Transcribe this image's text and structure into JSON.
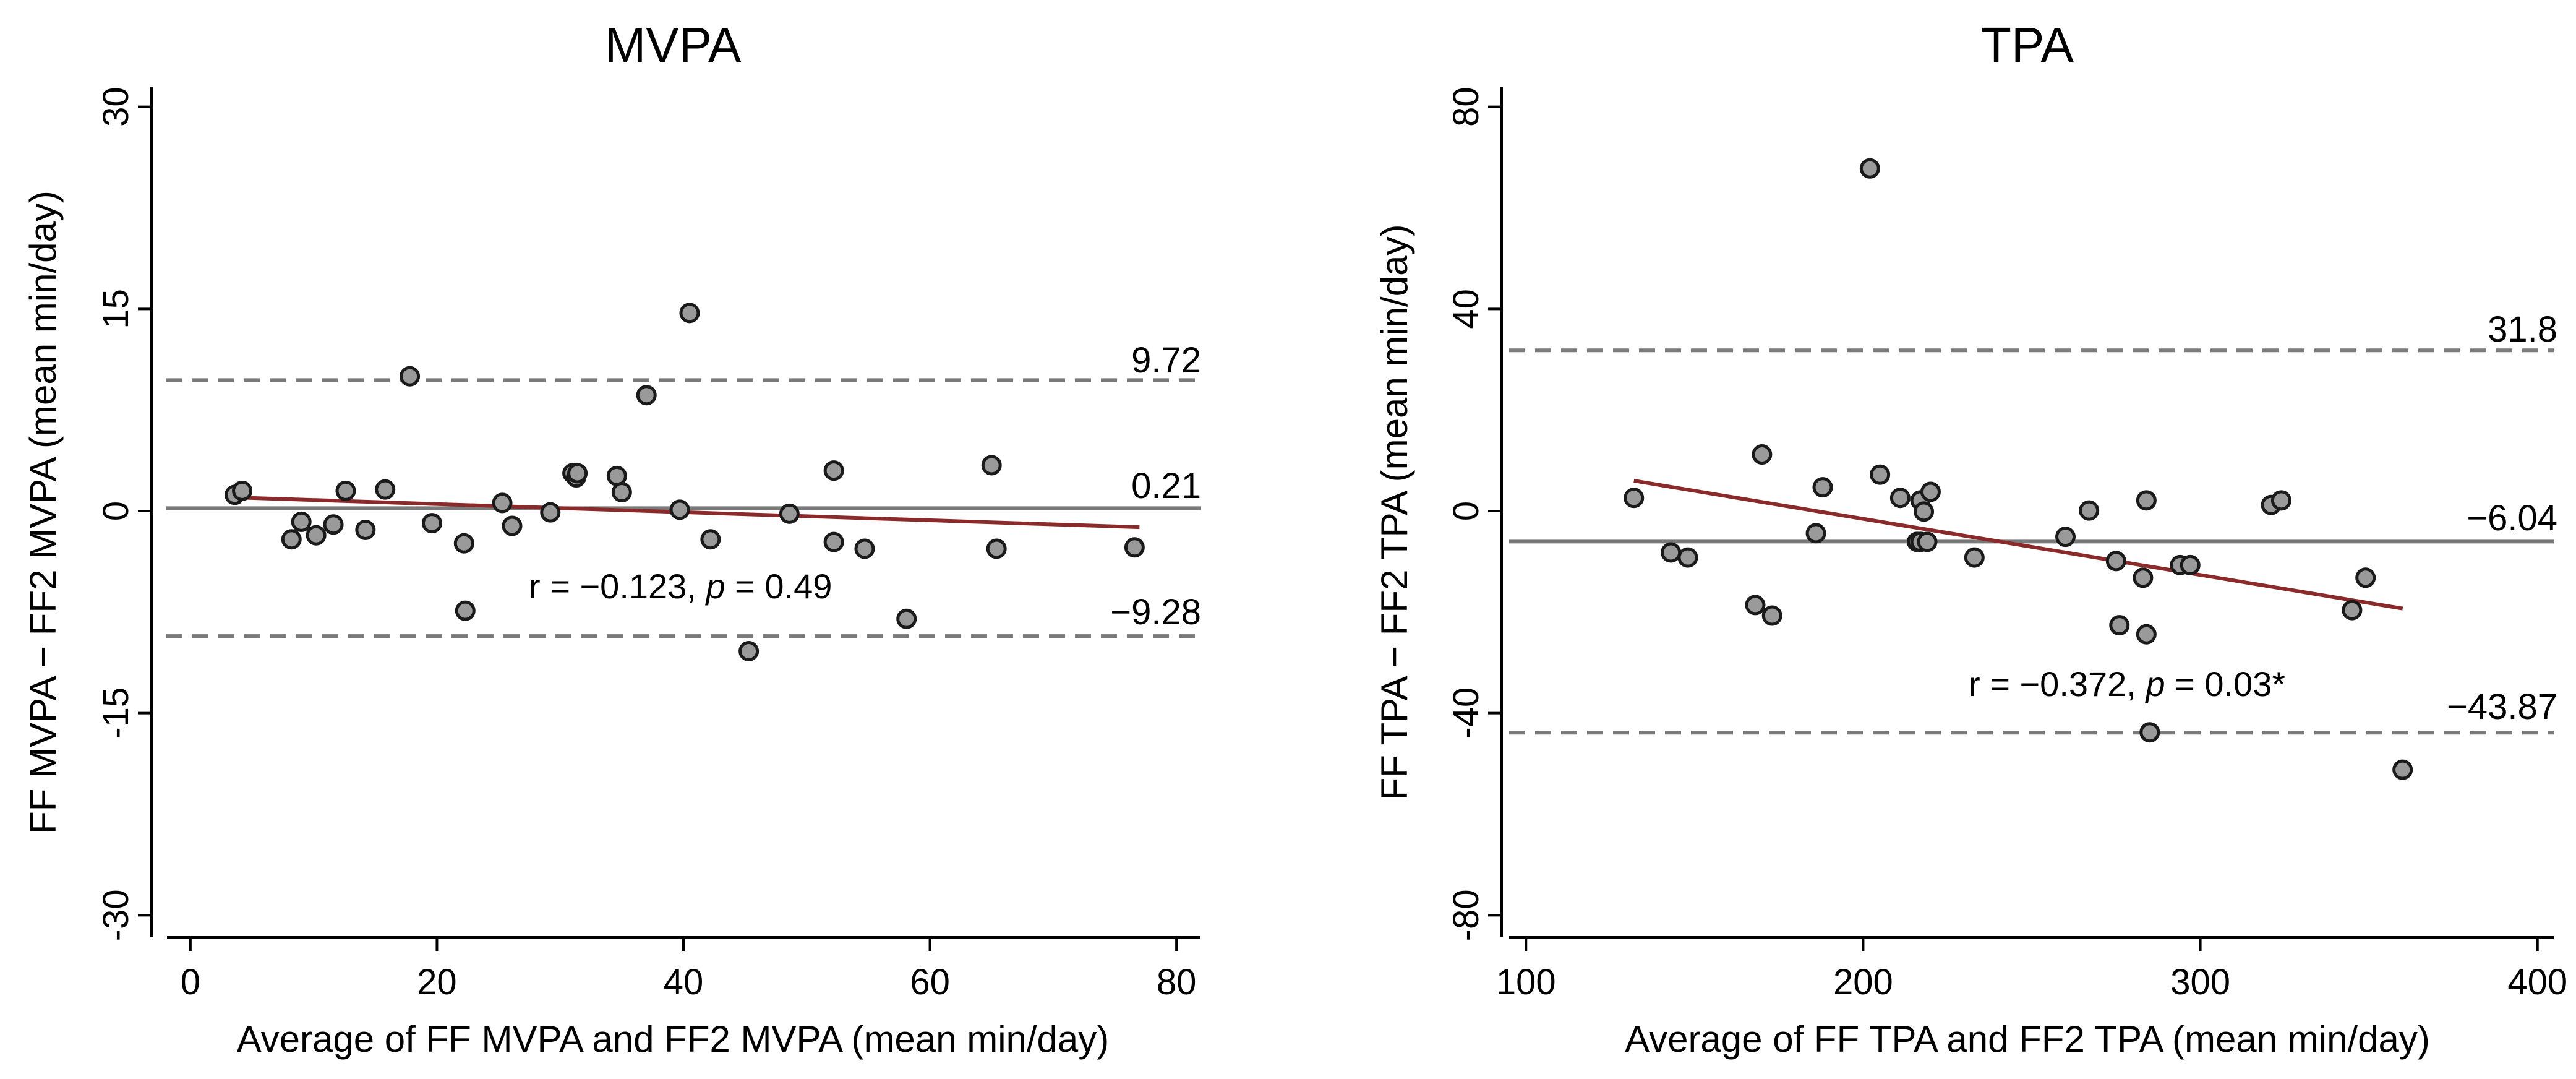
{
  "chart_data": [
    {
      "id": "mvpa",
      "type": "scatter",
      "title": "MVPA",
      "xlabel": "Average of FF MVPA and FF2 MVPA (mean min/day)",
      "ylabel": "FF MVPA − FF2 MVPA (mean min/day)",
      "xlim": [
        -2,
        82
      ],
      "ylim": [
        -31.5,
        31.5
      ],
      "xticks": [
        0,
        20,
        40,
        60,
        80
      ],
      "xtick_labels": [
        "0",
        "20",
        "40",
        "60",
        "80"
      ],
      "yticks": [
        -30,
        -15,
        0,
        15,
        30
      ],
      "ytick_labels": [
        "-30",
        "-15",
        "0",
        "15",
        "30"
      ],
      "mean_line": {
        "value": 0.21,
        "label": "0.21"
      },
      "loa_upper": {
        "value": 9.72,
        "label": "9.72"
      },
      "loa_lower": {
        "value": -9.28,
        "label": "−9.28"
      },
      "regression": {
        "x": [
          4,
          77
        ],
        "y": [
          1.0,
          -1.2
        ]
      },
      "stat": {
        "prefix": "r = −0.123,  ",
        "p_symbol": "p",
        "suffix": " = 0.49"
      },
      "points": {
        "x": [
          3.6,
          4.2,
          8.2,
          9,
          10.2,
          11.6,
          12.6,
          14.2,
          15.8,
          17.8,
          19.6,
          22.2,
          22.3,
          25.3,
          26.1,
          29.2,
          31,
          31.3,
          31.4,
          34.6,
          35,
          37,
          39.7,
          40.5,
          42.2,
          45.3,
          48.6,
          52.2,
          52.2,
          54.7,
          58.1,
          65,
          65.4,
          76.6
        ],
        "y": [
          1.2,
          1.5,
          -2.1,
          -0.8,
          -1.8,
          -1,
          1.5,
          -1.4,
          1.6,
          10,
          -0.9,
          -2.4,
          -7.4,
          0.6,
          -1.1,
          -0.1,
          2.8,
          2.5,
          2.8,
          2.6,
          1.4,
          8.6,
          0.1,
          14.7,
          -2.1,
          -10.4,
          -0.2,
          3,
          -2.3,
          -2.8,
          -8,
          3.4,
          -2.8,
          -2.7
        ]
      }
    },
    {
      "id": "tpa",
      "type": "scatter",
      "title": "TPA",
      "xlabel": "Average of FF TPA and FF2 TPA (mean min/day)",
      "ylabel": "FF TPA − FF2 TPA (mean min/day)",
      "xlim": [
        95,
        405
      ],
      "ylim": [
        -84,
        84
      ],
      "xticks": [
        100,
        200,
        300,
        400
      ],
      "xtick_labels": [
        "100",
        "200",
        "300",
        "400"
      ],
      "yticks": [
        -80,
        -40,
        0,
        40,
        80
      ],
      "ytick_labels": [
        "-80",
        "-40",
        "0",
        "40",
        "80"
      ],
      "mean_line": {
        "value": -6.04,
        "label": "−6.04"
      },
      "loa_upper": {
        "value": 31.8,
        "label": "31.8"
      },
      "loa_lower": {
        "value": -43.87,
        "label": "−43.87"
      },
      "regression": {
        "x": [
          132,
          360
        ],
        "y": [
          6,
          -19.3
        ]
      },
      "stat": {
        "prefix": "r = −0.372,  ",
        "p_symbol": "p",
        "suffix": " = 0.03*"
      },
      "points": {
        "x": [
          132,
          143,
          148,
          168,
          170,
          173,
          186,
          188,
          202,
          205,
          211,
          216,
          217,
          217,
          218,
          219,
          220,
          233,
          260,
          267,
          275,
          276,
          283,
          284,
          284,
          285,
          294,
          297,
          321,
          324,
          345,
          349,
          360
        ],
        "y": [
          2.6,
          -8.2,
          -9.2,
          -18.6,
          11.2,
          -20.7,
          -4.4,
          4.7,
          67.8,
          7.2,
          2.6,
          -6.1,
          -6.1,
          2.1,
          -0.1,
          -6.1,
          3.8,
          -9.2,
          -5.1,
          0.1,
          -9.9,
          -22.6,
          -13.2,
          2.1,
          -24.4,
          -43.8,
          -10.7,
          -10.7,
          1.2,
          2.1,
          -19.6,
          -13.2,
          -51.2
        ]
      }
    }
  ]
}
